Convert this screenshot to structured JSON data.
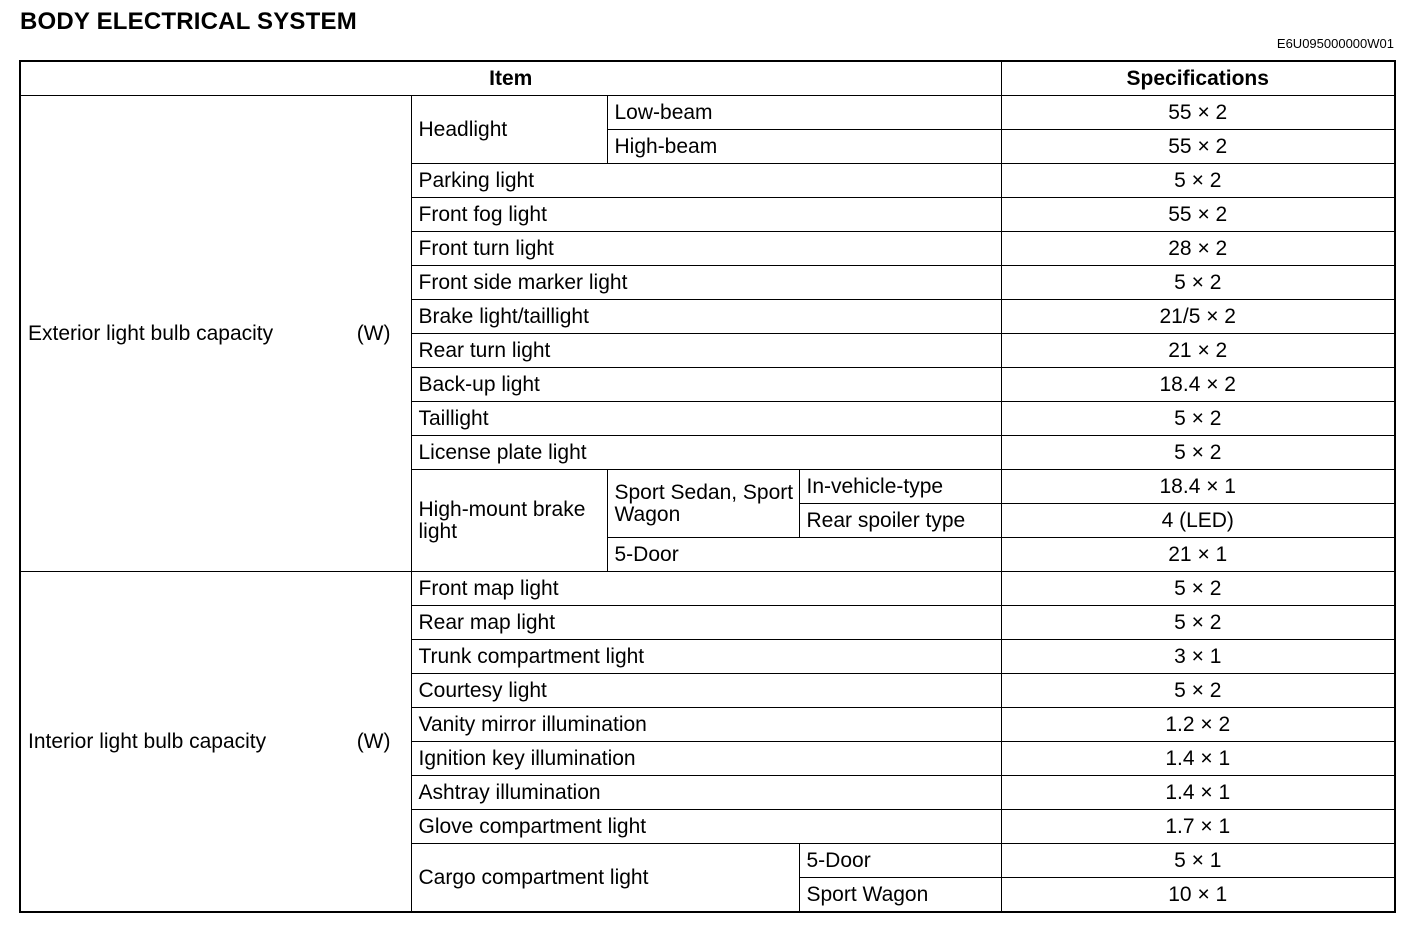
{
  "title": "BODY ELECTRICAL SYSTEM",
  "doc_code": "E6U095000000W01",
  "table": {
    "headers": {
      "item": "Item",
      "spec": "Specifications"
    },
    "exterior": {
      "label": "Exterior light bulb capacity",
      "unit": "(W)",
      "headlight": {
        "label": "Headlight",
        "low": "Low-beam",
        "low_spec": "55 × 2",
        "high": "High-beam",
        "high_spec": "55 × 2"
      },
      "rows": [
        {
          "item": "Parking light",
          "spec": "5 × 2"
        },
        {
          "item": "Front fog light",
          "spec": "55 × 2"
        },
        {
          "item": "Front turn light",
          "spec": "28 × 2"
        },
        {
          "item": "Front side marker light",
          "spec": "5 × 2"
        },
        {
          "item": "Brake light/taillight",
          "spec": "21/5 × 2"
        },
        {
          "item": "Rear turn light",
          "spec": "21 × 2"
        },
        {
          "item": "Back-up light",
          "spec": "18.4 × 2"
        },
        {
          "item": "Taillight",
          "spec": "5 × 2"
        },
        {
          "item": "License plate light",
          "spec": "5 × 2"
        }
      ],
      "high_mount": {
        "label": "High-mount brake light",
        "sedan_wagon": "Sport Sedan, Sport Wagon",
        "in_vehicle": "In-vehicle-type",
        "in_vehicle_spec": "18.4 × 1",
        "spoiler": "Rear spoiler type",
        "spoiler_spec": "4 (LED)",
        "five_door": "5-Door",
        "five_door_spec": "21 × 1"
      }
    },
    "interior": {
      "label": "Interior light bulb capacity",
      "unit": "(W)",
      "rows": [
        {
          "item": "Front map light",
          "spec": "5 × 2"
        },
        {
          "item": "Rear map light",
          "spec": "5 × 2"
        },
        {
          "item": "Trunk compartment light",
          "spec": "3 × 1"
        },
        {
          "item": "Courtesy light",
          "spec": "5 × 2"
        },
        {
          "item": "Vanity mirror illumination",
          "spec": "1.2 × 2"
        },
        {
          "item": "Ignition key illumination",
          "spec": "1.4 × 1"
        },
        {
          "item": "Ashtray illumination",
          "spec": "1.4 × 1"
        },
        {
          "item": "Glove compartment light",
          "spec": "1.7 × 1"
        }
      ],
      "cargo": {
        "label": "Cargo compartment light",
        "five_door": "5-Door",
        "five_door_spec": "5 × 1",
        "wagon": "Sport Wagon",
        "wagon_spec": "10 × 1"
      }
    }
  }
}
